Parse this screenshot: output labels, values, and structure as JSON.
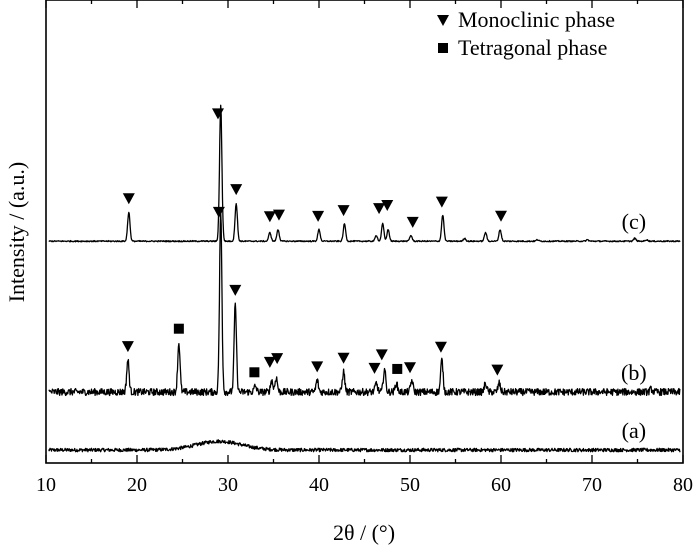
{
  "chart_data": {
    "type": "line",
    "title": "",
    "xlabel": "2θ / (°)",
    "ylabel": "Intensity / (a.u.)",
    "xlim": [
      10,
      80
    ],
    "x_ticks": [
      "10",
      "20",
      "30",
      "40",
      "50",
      "60",
      "70",
      "80"
    ],
    "y_ticks_shown": false,
    "grid": false,
    "legend_position": "top-right",
    "legend": [
      {
        "symbol": "triangle-down",
        "label": "Monoclinic phase"
      },
      {
        "symbol": "square",
        "label": "Tetragonal phase"
      }
    ],
    "series": [
      {
        "name": "(a)",
        "baseline": 0.0,
        "noise": 0.006,
        "hump": {
          "center": 29,
          "height": 0.03,
          "width": 3.5
        },
        "peaks": [],
        "markers": []
      },
      {
        "name": "(b)",
        "baseline": 0.2,
        "noise": 0.012,
        "peaks": [
          {
            "x": 19.0,
            "h": 0.11
          },
          {
            "x": 24.6,
            "h": 0.17
          },
          {
            "x": 29.2,
            "h": 0.62
          },
          {
            "x": 30.8,
            "h": 0.3
          },
          {
            "x": 33.0,
            "h": 0.02
          },
          {
            "x": 34.8,
            "h": 0.04
          },
          {
            "x": 35.3,
            "h": 0.05
          },
          {
            "x": 39.8,
            "h": 0.04
          },
          {
            "x": 42.7,
            "h": 0.07
          },
          {
            "x": 46.3,
            "h": 0.03
          },
          {
            "x": 47.2,
            "h": 0.08
          },
          {
            "x": 48.5,
            "h": 0.03
          },
          {
            "x": 50.2,
            "h": 0.04
          },
          {
            "x": 53.5,
            "h": 0.11
          },
          {
            "x": 58.3,
            "h": 0.03
          },
          {
            "x": 59.8,
            "h": 0.03
          },
          {
            "x": 76.5,
            "h": 0.01
          }
        ],
        "markers": [
          {
            "x": 19.0,
            "shape": "triangle-down"
          },
          {
            "x": 24.6,
            "shape": "square"
          },
          {
            "x": 29.0,
            "shape": "triangle-down"
          },
          {
            "x": 30.8,
            "shape": "triangle-down"
          },
          {
            "x": 32.9,
            "shape": "square"
          },
          {
            "x": 34.6,
            "shape": "triangle-down"
          },
          {
            "x": 35.4,
            "shape": "triangle-down"
          },
          {
            "x": 39.8,
            "shape": "triangle-down"
          },
          {
            "x": 42.7,
            "shape": "triangle-down"
          },
          {
            "x": 46.1,
            "shape": "triangle-down"
          },
          {
            "x": 46.9,
            "shape": "triangle-down"
          },
          {
            "x": 48.6,
            "shape": "square"
          },
          {
            "x": 50.0,
            "shape": "triangle-down"
          },
          {
            "x": 53.4,
            "shape": "triangle-down"
          },
          {
            "x": 59.6,
            "shape": "triangle-down"
          }
        ]
      },
      {
        "name": "(c)",
        "baseline": 0.72,
        "noise": 0.002,
        "peaks": [
          {
            "x": 19.1,
            "h": 0.1
          },
          {
            "x": 29.2,
            "h": 0.47
          },
          {
            "x": 30.9,
            "h": 0.13
          },
          {
            "x": 34.6,
            "h": 0.03
          },
          {
            "x": 35.5,
            "h": 0.04
          },
          {
            "x": 40.0,
            "h": 0.04
          },
          {
            "x": 42.8,
            "h": 0.06
          },
          {
            "x": 46.3,
            "h": 0.02
          },
          {
            "x": 47.0,
            "h": 0.06
          },
          {
            "x": 47.6,
            "h": 0.04
          },
          {
            "x": 50.1,
            "h": 0.02
          },
          {
            "x": 53.6,
            "h": 0.09
          },
          {
            "x": 56.0,
            "h": 0.01
          },
          {
            "x": 58.3,
            "h": 0.03
          },
          {
            "x": 59.9,
            "h": 0.04
          },
          {
            "x": 64.0,
            "h": 0.005
          },
          {
            "x": 69.5,
            "h": 0.005
          },
          {
            "x": 74.7,
            "h": 0.01
          },
          {
            "x": 76.0,
            "h": 0.005
          }
        ],
        "markers": [
          {
            "x": 19.1,
            "shape": "triangle-down"
          },
          {
            "x": 28.9,
            "shape": "triangle-down"
          },
          {
            "x": 30.9,
            "shape": "triangle-down"
          },
          {
            "x": 34.6,
            "shape": "triangle-down"
          },
          {
            "x": 35.6,
            "shape": "triangle-down"
          },
          {
            "x": 39.9,
            "shape": "triangle-down"
          },
          {
            "x": 42.7,
            "shape": "triangle-down"
          },
          {
            "x": 46.6,
            "shape": "triangle-down"
          },
          {
            "x": 47.5,
            "shape": "triangle-down"
          },
          {
            "x": 50.3,
            "shape": "triangle-down"
          },
          {
            "x": 53.5,
            "shape": "triangle-down"
          },
          {
            "x": 60.0,
            "shape": "triangle-down"
          }
        ]
      }
    ]
  }
}
